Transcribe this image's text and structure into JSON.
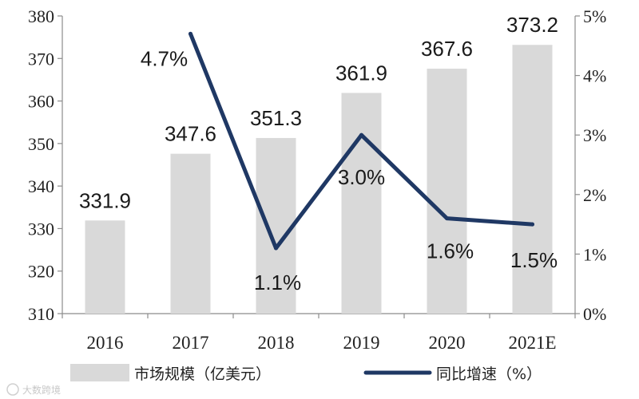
{
  "chart_data": {
    "type": "bar+line",
    "categories": [
      "2016",
      "2017",
      "2018",
      "2019",
      "2020",
      "2021E"
    ],
    "series": [
      {
        "name": "市场规模（亿美元）",
        "type": "bar",
        "axis": "left",
        "values": [
          331.9,
          347.6,
          351.3,
          361.9,
          367.6,
          373.2
        ],
        "labels": [
          "331.9",
          "347.6",
          "351.3",
          "361.9",
          "367.6",
          "373.2"
        ]
      },
      {
        "name": "同比增速（%）",
        "type": "line",
        "axis": "right",
        "values": [
          null,
          4.7,
          1.1,
          3.0,
          1.6,
          1.5
        ],
        "labels": [
          "",
          "4.7%",
          "1.1%",
          "3.0%",
          "1.6%",
          "1.5%"
        ]
      }
    ],
    "y_left": {
      "ylim": [
        310,
        380
      ],
      "ticks": [
        "310",
        "320",
        "330",
        "340",
        "350",
        "360",
        "370",
        "380"
      ]
    },
    "y_right": {
      "ylim": [
        0,
        5
      ],
      "ticks": [
        "0%",
        "1%",
        "2%",
        "3%",
        "4%",
        "5%"
      ]
    },
    "legend_position": "bottom",
    "grid": false,
    "colors": {
      "bar": "#d9d9d9",
      "line": "#1f3864",
      "axis": "#8c8c8c"
    }
  },
  "watermark": "大数跨境"
}
